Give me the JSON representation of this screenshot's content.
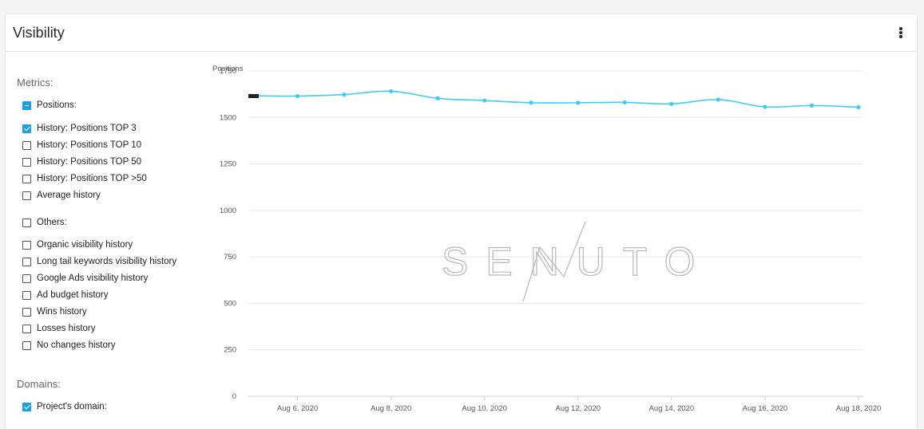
{
  "card": {
    "title": "Visibility",
    "menu_icon": "more-vertical-icon"
  },
  "sidebar": {
    "metrics_title": "Metrics:",
    "positions_group": {
      "label": "Positions:",
      "state": "indeterminate"
    },
    "positions_items": [
      {
        "label": "History: Positions TOP 3",
        "checked": true
      },
      {
        "label": "History: Positions TOP 10",
        "checked": false
      },
      {
        "label": "History: Positions TOP 50",
        "checked": false
      },
      {
        "label": "History: Positions TOP >50",
        "checked": false
      },
      {
        "label": "Average history",
        "checked": false
      }
    ],
    "others_group": {
      "label": "Others:",
      "checked": false
    },
    "others_items": [
      {
        "label": "Organic visibility history",
        "checked": false
      },
      {
        "label": "Long tail keywords visibility history",
        "checked": false
      },
      {
        "label": "Google Ads visibility history",
        "checked": false
      },
      {
        "label": "Ad budget history",
        "checked": false
      },
      {
        "label": "Wins history",
        "checked": false
      },
      {
        "label": "Losses history",
        "checked": false
      },
      {
        "label": "No changes history",
        "checked": false
      }
    ],
    "domains_title": "Domains:",
    "domain_items": [
      {
        "label": "Project's domain:",
        "checked": true
      }
    ]
  },
  "chart_data": {
    "type": "line",
    "ylabel": "Positions",
    "ylim": [
      0,
      1750
    ],
    "yticks": [
      0,
      250,
      500,
      750,
      1000,
      1250,
      1500,
      1750
    ],
    "xticks": [
      "Aug 6, 2020",
      "Aug 8, 2020",
      "Aug 10, 2020",
      "Aug 12, 2020",
      "Aug 14, 2020",
      "Aug 16, 2020",
      "Aug 18, 2020"
    ],
    "x": [
      "Aug 5, 2020",
      "Aug 6, 2020",
      "Aug 7, 2020",
      "Aug 8, 2020",
      "Aug 9, 2020",
      "Aug 10, 2020",
      "Aug 11, 2020",
      "Aug 12, 2020",
      "Aug 13, 2020",
      "Aug 14, 2020",
      "Aug 15, 2020",
      "Aug 16, 2020",
      "Aug 17, 2020",
      "Aug 18, 2020"
    ],
    "series": [
      {
        "values": [
          1617,
          1615,
          1623,
          1641,
          1603,
          1591,
          1579,
          1579,
          1581,
          1573,
          1596,
          1557,
          1564,
          1555
        ]
      }
    ],
    "grid": true,
    "color": "#3ecbf7",
    "watermark": "SENUTO"
  },
  "colors": {
    "accent": "#1aa0e8",
    "line": "#3ecbf7",
    "grid": "#e6e6e6"
  }
}
